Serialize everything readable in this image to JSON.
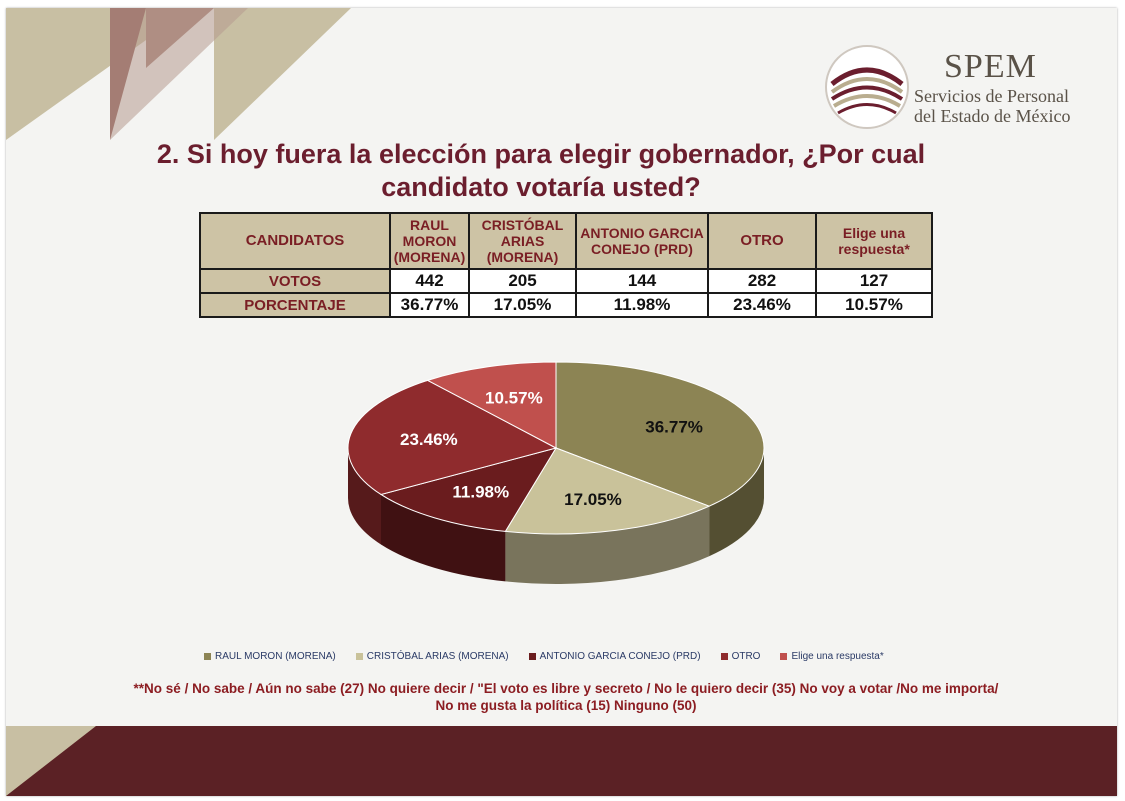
{
  "brand": {
    "name": "SPEM",
    "subtitle_line1": "Servicios de Personal",
    "subtitle_line2": "del Estado de México"
  },
  "title_line1": "2. Si hoy fuera la elección para elegir gobernador, ¿Por cual",
  "title_line2": "candidato votaría usted?",
  "table": {
    "corner_header": "CANDIDATOS",
    "candidates": [
      {
        "line1": "RAUL",
        "line2": "MORON",
        "line3": "(MORENA)",
        "votes": "442",
        "percent": "36.77%"
      },
      {
        "line1": "CRISTÓBAL",
        "line2": "ARIAS",
        "line3": "(MORENA)",
        "votes": "205",
        "percent": "17.05%"
      },
      {
        "line1": "ANTONIO GARCIA",
        "line2": "CONEJO (PRD)",
        "line3": "",
        "votes": "144",
        "percent": "11.98%"
      },
      {
        "line1": "OTRO",
        "line2": "",
        "line3": "",
        "votes": "282",
        "percent": "23.46%"
      },
      {
        "line1": "Elige una",
        "line2": "respuesta*",
        "line3": "",
        "votes": "127",
        "percent": "10.57%"
      }
    ],
    "row_votes_label": "VOTOS",
    "row_percent_label": "PORCENTAJE"
  },
  "chart_data": {
    "type": "pie",
    "title": "",
    "categories": [
      "RAUL MORON (MORENA)",
      "CRISTÓBAL ARIAS (MORENA)",
      "ANTONIO GARCIA CONEJO (PRD)",
      "OTRO",
      "Elige una respuesta*"
    ],
    "values": [
      36.77,
      17.05,
      11.98,
      23.46,
      10.57
    ],
    "labels": [
      "36.77%",
      "17.05%",
      "11.98%",
      "23.46%",
      "10.57%"
    ],
    "colors": [
      "#8c8454",
      "#c9c29a",
      "#6a1c1e",
      "#8f2b2d",
      "#c0504d"
    ],
    "legend_position": "bottom"
  },
  "legend": [
    "RAUL MORON (MORENA)",
    "CRISTÓBAL ARIAS (MORENA)",
    "ANTONIO GARCIA CONEJO (PRD)",
    "OTRO",
    "Elige una respuesta*"
  ],
  "note_line1": "**No sé / No sabe / Aún no sabe (27) No quiere decir / \"El voto es libre y secreto / No le quiero decir (35) No voy a votar /No me importa/",
  "note_line2": "No me gusta la política (15)  Ninguno (50)"
}
